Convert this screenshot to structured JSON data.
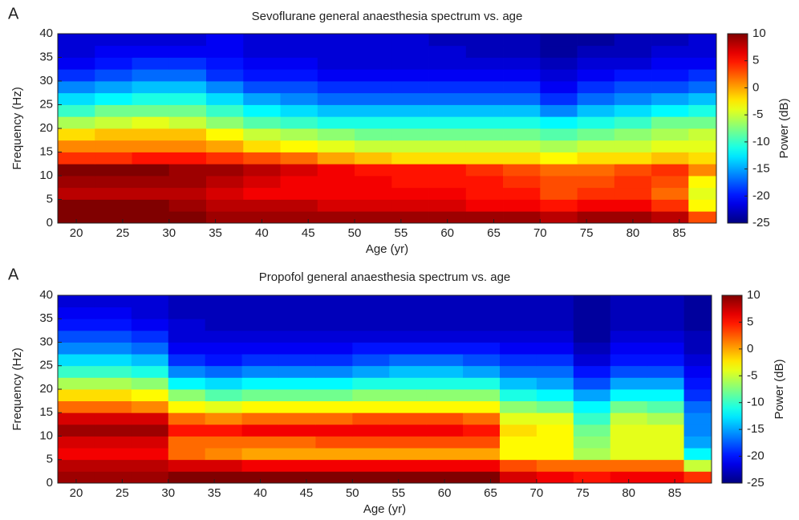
{
  "chart_data": [
    {
      "type": "heatmap",
      "panel_label": "A",
      "title": "Sevoflurane general anaesthesia spectrum vs. age",
      "x_label": "Age (yr)",
      "y_label": "Frequency (Hz)",
      "colorbar_label": "Power (dB)",
      "colormap": "jet",
      "xlim": [
        18,
        89
      ],
      "ylim": [
        0,
        40
      ],
      "clim": [
        -25,
        10
      ],
      "xticks": [
        20,
        25,
        30,
        35,
        40,
        45,
        50,
        55,
        60,
        65,
        70,
        75,
        80,
        85
      ],
      "yticks": [
        0,
        5,
        10,
        15,
        20,
        25,
        30,
        35,
        40
      ],
      "cticks": [
        10,
        5,
        0,
        -5,
        -10,
        -15,
        -20,
        -25
      ],
      "x_bins": [
        18,
        22,
        26,
        30,
        34,
        38,
        42,
        46,
        50,
        54,
        58,
        62,
        66,
        70,
        74,
        78,
        82,
        86,
        89
      ],
      "y_bins": [
        0,
        2.5,
        5,
        7.5,
        10,
        12.5,
        15,
        17.5,
        20,
        22.5,
        25,
        27.5,
        30,
        32.5,
        35,
        37.5,
        40
      ],
      "values": [
        [
          10,
          10,
          10,
          10,
          9,
          9,
          9,
          9,
          9,
          9,
          9,
          9,
          9,
          8,
          9,
          9,
          8,
          3
        ],
        [
          10,
          10,
          10,
          9,
          8,
          8,
          8,
          7,
          7,
          7,
          7,
          6,
          6,
          5,
          6,
          6,
          4,
          -3
        ],
        [
          8,
          8,
          8,
          8,
          7,
          6,
          6,
          6,
          6,
          6,
          6,
          5,
          5,
          3,
          4,
          4,
          2,
          -4
        ],
        [
          9,
          9,
          9,
          9,
          8,
          7,
          6,
          6,
          6,
          5,
          5,
          5,
          4,
          3,
          3,
          4,
          3,
          -3
        ],
        [
          10,
          10,
          10,
          9,
          9,
          8,
          7,
          6,
          5,
          5,
          5,
          4,
          3,
          2,
          2,
          3,
          4,
          1
        ],
        [
          4,
          4,
          5,
          5,
          4,
          3,
          2,
          0,
          -1,
          -2,
          -2,
          -2,
          -2,
          -3,
          -2,
          -2,
          -1,
          -2
        ],
        [
          1,
          1,
          1,
          1,
          0,
          -2,
          -3,
          -4,
          -5,
          -5,
          -5,
          -5,
          -5,
          -6,
          -5,
          -5,
          -4,
          -4
        ],
        [
          -2,
          -1,
          -1,
          -1,
          -3,
          -5,
          -6,
          -7,
          -8,
          -8,
          -8,
          -8,
          -8,
          -9,
          -8,
          -7,
          -6,
          -5
        ],
        [
          -6,
          -5,
          -4,
          -5,
          -7,
          -9,
          -10,
          -11,
          -11,
          -11,
          -11,
          -11,
          -11,
          -12,
          -11,
          -10,
          -8,
          -8
        ],
        [
          -10,
          -8,
          -8,
          -8,
          -10,
          -12,
          -13,
          -14,
          -14,
          -14,
          -14,
          -14,
          -14,
          -16,
          -14,
          -13,
          -12,
          -11
        ],
        [
          -13,
          -12,
          -11,
          -11,
          -13,
          -15,
          -16,
          -17,
          -17,
          -17,
          -17,
          -17,
          -17,
          -19,
          -17,
          -16,
          -15,
          -14
        ],
        [
          -16,
          -15,
          -14,
          -14,
          -16,
          -18,
          -18,
          -19,
          -19,
          -19,
          -19,
          -19,
          -19,
          -21,
          -19,
          -18,
          -18,
          -17
        ],
        [
          -19,
          -18,
          -17,
          -17,
          -19,
          -20,
          -20,
          -21,
          -21,
          -21,
          -21,
          -21,
          -21,
          -22,
          -21,
          -20,
          -20,
          -19
        ],
        [
          -21,
          -20,
          -19,
          -19,
          -20,
          -21,
          -21,
          -22,
          -22,
          -22,
          -22,
          -22,
          -22,
          -23,
          -22,
          -22,
          -21,
          -21
        ],
        [
          -22,
          -21,
          -21,
          -21,
          -21,
          -22,
          -22,
          -22,
          -22,
          -22,
          -22,
          -23,
          -23,
          -24,
          -23,
          -23,
          -22,
          -22
        ],
        [
          -22,
          -22,
          -22,
          -22,
          -21,
          -22,
          -22,
          -22,
          -22,
          -22,
          -23,
          -23,
          -23,
          -24,
          -24,
          -23,
          -23,
          -22
        ]
      ]
    },
    {
      "type": "heatmap",
      "panel_label": "A",
      "title": "Propofol general anaesthesia spectrum vs. age",
      "x_label": "Age (yr)",
      "y_label": "Frequency (Hz)",
      "colorbar_label": "Power (dB)",
      "colormap": "jet",
      "xlim": [
        18,
        89
      ],
      "ylim": [
        0,
        40
      ],
      "clim": [
        -25,
        10
      ],
      "xticks": [
        20,
        25,
        30,
        35,
        40,
        45,
        50,
        55,
        60,
        65,
        70,
        75,
        80,
        85
      ],
      "yticks": [
        0,
        5,
        10,
        15,
        20,
        25,
        30,
        35,
        40
      ],
      "cticks": [
        10,
        5,
        0,
        -5,
        -10,
        -15,
        -20,
        -25
      ],
      "x_bins": [
        18,
        22,
        26,
        30,
        34,
        38,
        42,
        46,
        50,
        54,
        58,
        62,
        66,
        70,
        74,
        78,
        82,
        86,
        89
      ],
      "y_bins": [
        0,
        2.5,
        5,
        7.5,
        10,
        12.5,
        15,
        17.5,
        20,
        22.5,
        25,
        27.5,
        30,
        32.5,
        35,
        37.5,
        40
      ],
      "values": [
        [
          9,
          9,
          9,
          10,
          10,
          10,
          10,
          10,
          10,
          10,
          10,
          10,
          7,
          6,
          5,
          6,
          6,
          4
        ],
        [
          8,
          8,
          8,
          7,
          7,
          6,
          6,
          6,
          6,
          6,
          6,
          6,
          3,
          2,
          2,
          2,
          2,
          -5
        ],
        [
          6,
          6,
          6,
          2,
          1,
          0,
          0,
          0,
          0,
          0,
          0,
          0,
          -3,
          -3,
          -6,
          -4,
          -4,
          -12
        ],
        [
          7,
          7,
          7,
          2,
          2,
          2,
          2,
          3,
          3,
          3,
          3,
          3,
          -3,
          -3,
          -7,
          -4,
          -4,
          -15
        ],
        [
          9,
          9,
          9,
          5,
          5,
          6,
          6,
          6,
          6,
          6,
          6,
          5,
          -2,
          -3,
          -8,
          -4,
          -4,
          -16
        ],
        [
          7,
          7,
          7,
          2,
          1,
          2,
          2,
          2,
          3,
          3,
          3,
          2,
          -4,
          -4,
          -10,
          -5,
          -6,
          -16
        ],
        [
          2,
          2,
          1,
          -3,
          -4,
          -3,
          -3,
          -3,
          -3,
          -3,
          -3,
          -3,
          -7,
          -8,
          -12,
          -8,
          -9,
          -17
        ],
        [
          -2,
          -2,
          -3,
          -7,
          -9,
          -8,
          -8,
          -8,
          -7,
          -7,
          -7,
          -7,
          -11,
          -12,
          -15,
          -12,
          -12,
          -19
        ],
        [
          -6,
          -6,
          -7,
          -12,
          -13,
          -12,
          -12,
          -12,
          -11,
          -11,
          -11,
          -11,
          -14,
          -15,
          -18,
          -15,
          -15,
          -20
        ],
        [
          -10,
          -10,
          -11,
          -16,
          -17,
          -16,
          -16,
          -16,
          -15,
          -14,
          -14,
          -15,
          -17,
          -17,
          -20,
          -18,
          -18,
          -21
        ],
        [
          -13,
          -13,
          -14,
          -19,
          -20,
          -19,
          -19,
          -19,
          -18,
          -17,
          -17,
          -18,
          -19,
          -19,
          -22,
          -20,
          -20,
          -22
        ],
        [
          -16,
          -16,
          -17,
          -21,
          -21,
          -21,
          -21,
          -21,
          -20,
          -20,
          -20,
          -20,
          -21,
          -21,
          -23,
          -21,
          -21,
          -23
        ],
        [
          -18,
          -18,
          -19,
          -22,
          -22,
          -22,
          -22,
          -22,
          -22,
          -22,
          -22,
          -22,
          -22,
          -22,
          -24,
          -22,
          -22,
          -23
        ],
        [
          -20,
          -20,
          -21,
          -22,
          -23,
          -23,
          -23,
          -23,
          -23,
          -23,
          -23,
          -23,
          -23,
          -23,
          -24,
          -23,
          -23,
          -24
        ],
        [
          -21,
          -21,
          -22,
          -23,
          -23,
          -23,
          -23,
          -23,
          -23,
          -23,
          -23,
          -23,
          -23,
          -23,
          -24,
          -23,
          -23,
          -24
        ],
        [
          -22,
          -22,
          -22,
          -23,
          -23,
          -23,
          -23,
          -23,
          -23,
          -23,
          -23,
          -23,
          -23,
          -23,
          -24,
          -23,
          -23,
          -24
        ]
      ]
    }
  ]
}
